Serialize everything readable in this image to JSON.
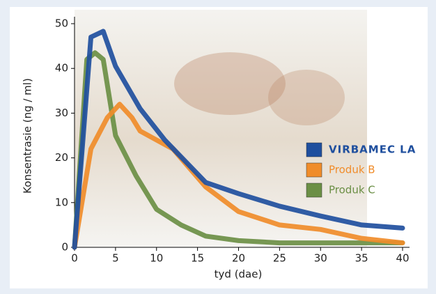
{
  "chart_data": {
    "type": "line",
    "x_label": "tyd (dae)",
    "y_label": "Konsentrasie (ng / ml)",
    "xlim": [
      0,
      40
    ],
    "xticks": [
      0,
      5,
      10,
      15,
      20,
      25,
      30,
      35,
      40
    ],
    "ylim": [
      0,
      50
    ],
    "yticks": [
      0,
      10,
      20,
      30,
      40,
      50
    ],
    "grid": false,
    "legend": "right",
    "series": [
      {
        "name": "VIRBAMEC LA",
        "color": "#1f4f9e",
        "x": [
          0,
          2,
          3.5,
          5,
          8,
          11,
          16,
          20,
          25,
          30,
          35,
          40
        ],
        "values": [
          0,
          47,
          48.3,
          40.5,
          31,
          24,
          14.5,
          12,
          9.2,
          7,
          5,
          4.3
        ]
      },
      {
        "name": "Produk B",
        "color": "#f08c2a",
        "x": [
          0,
          2,
          4,
          5.5,
          7,
          8,
          10,
          12,
          16,
          20,
          25,
          30,
          35,
          40
        ],
        "values": [
          0,
          22,
          29,
          32,
          29,
          26,
          24,
          22,
          13.5,
          8,
          5,
          4,
          2,
          1
        ]
      },
      {
        "name": "Produk C",
        "color": "#6b8f45",
        "x": [
          0,
          1.5,
          2.5,
          3.5,
          5,
          7.5,
          10,
          13,
          16,
          20,
          25,
          30,
          35,
          40
        ],
        "values": [
          0,
          42,
          43.5,
          42,
          25,
          16,
          8.5,
          5,
          2.5,
          1.5,
          1,
          1,
          1,
          1
        ]
      }
    ]
  }
}
